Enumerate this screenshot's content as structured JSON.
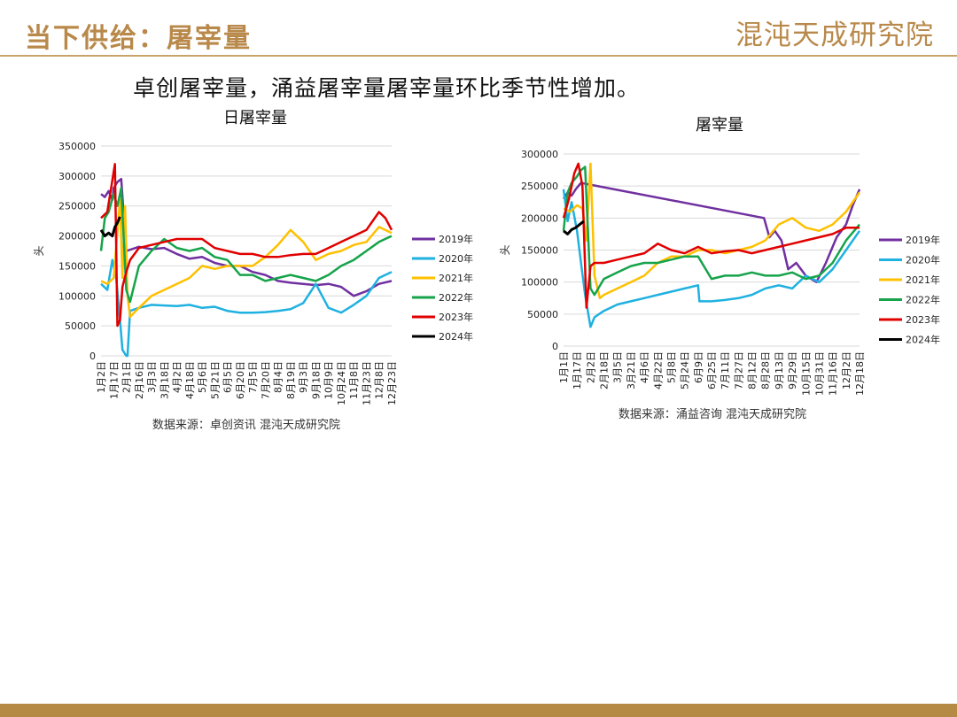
{
  "header": {
    "title": "当下供给：屠宰量",
    "logo": "混沌天成研究院"
  },
  "headline": "卓创屠宰量，涌益屠宰量屠宰量环比季节性增加。",
  "colors": {
    "2019年": "#7030a0",
    "2020年": "#1fb1e0",
    "2021年": "#ffc000",
    "2022年": "#16a34a",
    "2023年": "#e00000",
    "2024年": "#000000",
    "accent": "#b8894a"
  },
  "chart_data": [
    {
      "type": "line",
      "title": "日屠宰量",
      "ylabel": "头",
      "source": "数据来源：卓创资讯 混沌天成研究院",
      "ylim": [
        0,
        350000
      ],
      "yticks": [
        "350000",
        "300000",
        "250000",
        "200000",
        "150000",
        "100000",
        "50000",
        "0"
      ],
      "x_labels": [
        "1月2日",
        "1月17日",
        "2月1日",
        "2月16日",
        "3月3日",
        "3月18日",
        "4月2日",
        "4月18日",
        "5月6日",
        "5月21日",
        "6月5日",
        "6月20日",
        "7月5日",
        "7月20日",
        "8月4日",
        "8月19日",
        "9月3日",
        "9月18日",
        "10月9日",
        "10月24日",
        "11月8日",
        "11月23日",
        "12月8日",
        "12月23日"
      ],
      "grid": "horizontal",
      "legend_position": "right",
      "series": [
        {
          "name": "2019年",
          "x": [
            0,
            0.3,
            0.6,
            0.9,
            1.0,
            1.3,
            1.6,
            2,
            3,
            4,
            5,
            6,
            7,
            8,
            9,
            10,
            11,
            12,
            13,
            14,
            15,
            16,
            17,
            18,
            19,
            20,
            21,
            22,
            23
          ],
          "values": [
            270000,
            265000,
            275000,
            260000,
            280000,
            290000,
            295000,
            175000,
            182000,
            178000,
            180000,
            170000,
            162000,
            165000,
            155000,
            150000,
            150000,
            140000,
            135000,
            125000,
            122000,
            120000,
            118000,
            120000,
            115000,
            100000,
            108000,
            120000,
            125000
          ]
        },
        {
          "name": "2020年",
          "x": [
            0,
            0.5,
            0.9,
            1.2,
            1.5,
            1.7,
            2.0,
            2.1,
            2.3,
            3,
            4,
            5,
            6,
            7,
            8,
            9,
            10,
            11,
            12,
            13,
            14,
            15,
            16,
            17,
            18,
            19,
            20,
            21,
            22,
            23
          ],
          "values": [
            120000,
            110000,
            160000,
            130000,
            60000,
            10000,
            0,
            0,
            75000,
            80000,
            85000,
            84000,
            83000,
            85000,
            80000,
            82000,
            75000,
            72000,
            72000,
            73000,
            75000,
            78000,
            88000,
            120000,
            80000,
            72000,
            85000,
            100000,
            130000,
            140000
          ]
        },
        {
          "name": "2021年",
          "x": [
            0,
            0.5,
            1.0,
            1.5,
            1.7,
            1.9,
            2.1,
            2.3,
            3,
            4,
            5,
            6,
            7,
            8,
            9,
            10,
            11,
            12,
            13,
            14,
            15,
            16,
            17,
            18,
            19,
            20,
            21,
            22,
            23
          ],
          "values": [
            125000,
            120000,
            130000,
            260000,
            130000,
            250000,
            100000,
            65000,
            80000,
            100000,
            110000,
            120000,
            130000,
            150000,
            145000,
            150000,
            150000,
            150000,
            165000,
            185000,
            210000,
            190000,
            160000,
            170000,
            175000,
            185000,
            190000,
            215000,
            205000
          ]
        },
        {
          "name": "2022年",
          "x": [
            0,
            0.3,
            0.6,
            1.0,
            1.3,
            1.6,
            2,
            2.3,
            3,
            4,
            5,
            6,
            7,
            8,
            9,
            10,
            11,
            12,
            13,
            14,
            15,
            16,
            17,
            18,
            19,
            20,
            21,
            22,
            23
          ],
          "values": [
            175000,
            230000,
            240000,
            270000,
            250000,
            280000,
            110000,
            90000,
            150000,
            175000,
            195000,
            180000,
            175000,
            180000,
            165000,
            160000,
            135000,
            135000,
            125000,
            130000,
            135000,
            130000,
            125000,
            135000,
            150000,
            160000,
            175000,
            190000,
            200000
          ]
        },
        {
          "name": "2023年",
          "x": [
            0,
            0.5,
            0.8,
            1.1,
            1.3,
            1.5,
            1.7,
            2,
            2.3,
            3,
            4,
            5,
            6,
            7,
            8,
            9,
            10,
            11,
            12,
            13,
            14,
            15,
            16,
            17,
            18,
            19,
            20,
            21,
            22,
            22.5,
            23
          ],
          "values": [
            230000,
            240000,
            280000,
            320000,
            50000,
            60000,
            115000,
            140000,
            160000,
            180000,
            185000,
            190000,
            195000,
            195000,
            195000,
            180000,
            175000,
            170000,
            170000,
            165000,
            165000,
            168000,
            170000,
            170000,
            180000,
            190000,
            200000,
            210000,
            240000,
            230000,
            210000
          ]
        },
        {
          "name": "2024年",
          "x": [
            0,
            0.3,
            0.6,
            0.9,
            1.1,
            1.3,
            1.5
          ],
          "values": [
            210000,
            200000,
            205000,
            200000,
            215000,
            222000,
            232000
          ]
        }
      ]
    },
    {
      "type": "line",
      "title": "屠宰量",
      "ylabel": "头",
      "source": "数据来源：涌益咨询 混沌天成研究院",
      "ylim": [
        0,
        300000
      ],
      "yticks": [
        "300000",
        "250000",
        "200000",
        "150000",
        "100000",
        "50000",
        "0"
      ],
      "x_labels": [
        "1月1日",
        "1月17日",
        "2月2日",
        "2月18日",
        "3月5日",
        "3月21日",
        "4月6日",
        "4月22日",
        "5月8日",
        "5月24日",
        "6月9日",
        "6月25日",
        "7月11日",
        "7月27日",
        "8月12日",
        "8月28日",
        "9月13日",
        "9月29日",
        "10月15日",
        "10月31日",
        "11月16日",
        "12月2日",
        "12月18日"
      ],
      "grid": "horizontal",
      "legend_position": "right",
      "series": [
        {
          "name": "2019年",
          "x": [
            0,
            0.3,
            0.6,
            0.9,
            1.1,
            1.3,
            14.9,
            15.3,
            15.7,
            16.2,
            16.7,
            17.3,
            18,
            18.8,
            19.5,
            20.3,
            21,
            21.5,
            22
          ],
          "values": [
            230000,
            240000,
            235000,
            245000,
            250000,
            255000,
            200000,
            170000,
            180000,
            165000,
            120000,
            130000,
            110000,
            100000,
            130000,
            170000,
            190000,
            220000,
            245000
          ]
        },
        {
          "name": "2020年",
          "x": [
            0,
            0.3,
            0.6,
            1.0,
            1.3,
            1.6,
            2.0,
            2.3,
            3,
            4,
            5,
            6,
            7,
            8,
            9,
            10,
            10.1,
            11,
            12,
            13,
            14,
            15,
            16,
            17,
            18,
            19,
            20,
            21,
            22
          ],
          "values": [
            245000,
            195000,
            225000,
            180000,
            130000,
            80000,
            30000,
            45000,
            55000,
            65000,
            70000,
            75000,
            80000,
            85000,
            90000,
            95000,
            70000,
            70000,
            72000,
            75000,
            80000,
            90000,
            95000,
            90000,
            110000,
            100000,
            120000,
            150000,
            180000
          ]
        },
        {
          "name": "2021年",
          "x": [
            0,
            0.5,
            1.0,
            1.4,
            1.7,
            2.0,
            2.3,
            2.7,
            3,
            4,
            5,
            6,
            7,
            8,
            9,
            10,
            11,
            12,
            13,
            14,
            15,
            16,
            17,
            18,
            19,
            20,
            21,
            22
          ],
          "values": [
            215000,
            210000,
            220000,
            215000,
            165000,
            285000,
            110000,
            75000,
            80000,
            90000,
            100000,
            110000,
            130000,
            140000,
            140000,
            150000,
            150000,
            145000,
            150000,
            155000,
            165000,
            190000,
            200000,
            185000,
            180000,
            190000,
            210000,
            240000
          ]
        },
        {
          "name": "2022年",
          "x": [
            0,
            0.3,
            0.6,
            1.0,
            1.3,
            1.6,
            2.0,
            2.3,
            3,
            4,
            5,
            6,
            7,
            8,
            9,
            10,
            11,
            12,
            13,
            14,
            15,
            16,
            17,
            18,
            19,
            20,
            21,
            22
          ],
          "values": [
            180000,
            240000,
            255000,
            265000,
            275000,
            280000,
            90000,
            80000,
            105000,
            115000,
            125000,
            130000,
            130000,
            135000,
            140000,
            140000,
            105000,
            110000,
            110000,
            115000,
            110000,
            110000,
            115000,
            105000,
            110000,
            130000,
            165000,
            190000
          ]
        },
        {
          "name": "2023年",
          "x": [
            0,
            0.4,
            0.8,
            1.1,
            1.4,
            1.7,
            2,
            2.3,
            3,
            4,
            5,
            6,
            7,
            8,
            9,
            10,
            11,
            12,
            13,
            14,
            15,
            16,
            17,
            18,
            19,
            20,
            21,
            22
          ],
          "values": [
            200000,
            230000,
            270000,
            285000,
            250000,
            60000,
            125000,
            130000,
            130000,
            135000,
            140000,
            145000,
            160000,
            150000,
            145000,
            155000,
            145000,
            148000,
            150000,
            145000,
            150000,
            155000,
            160000,
            165000,
            170000,
            175000,
            185000,
            185000
          ]
        },
        {
          "name": "2024年",
          "x": [
            0,
            0.3,
            0.6,
            0.9,
            1.2,
            1.5
          ],
          "values": [
            180000,
            175000,
            182000,
            185000,
            190000,
            195000
          ]
        }
      ]
    }
  ]
}
